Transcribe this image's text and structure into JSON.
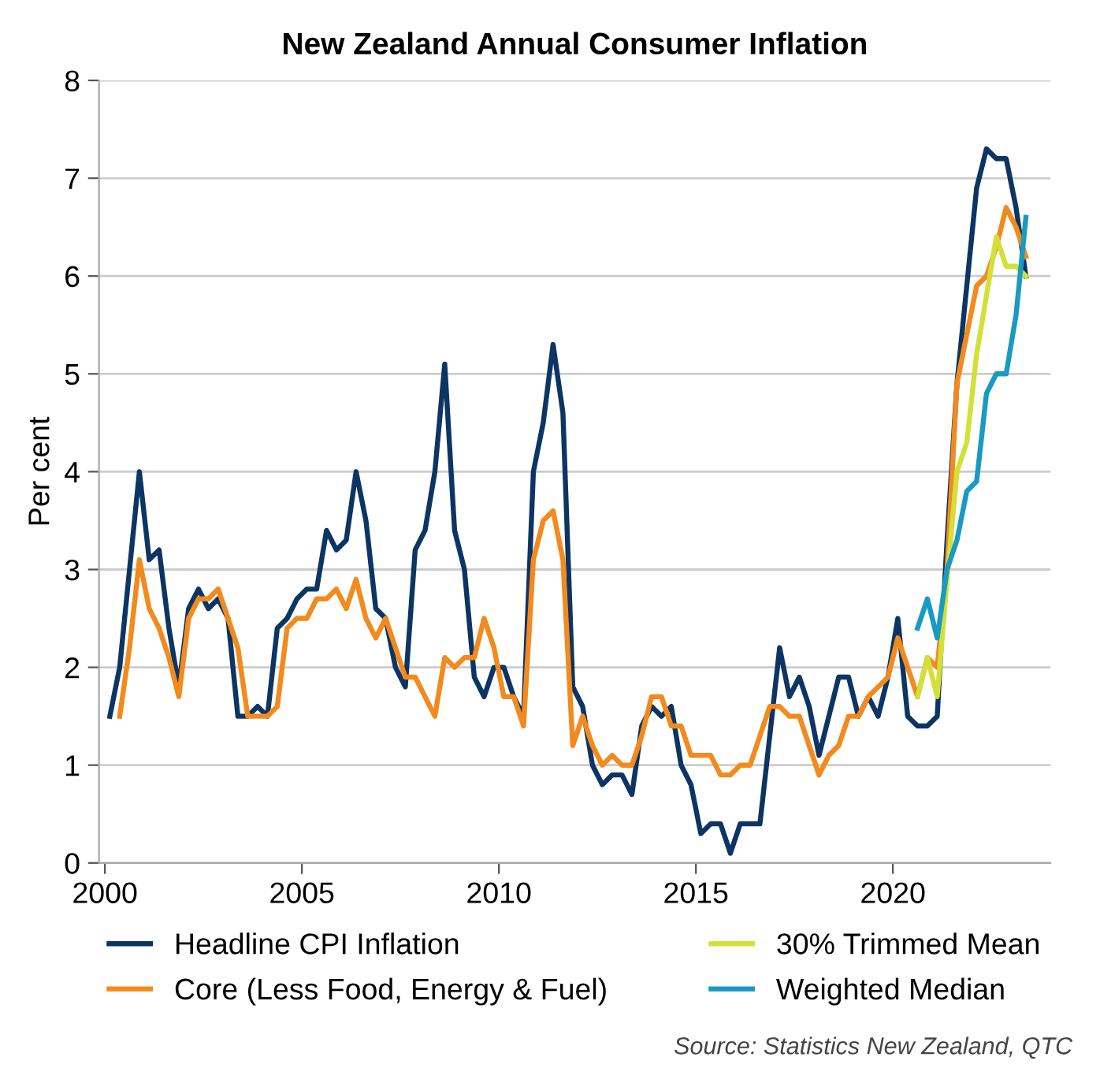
{
  "chart_data": {
    "type": "line",
    "title": "New Zealand Annual Consumer Inflation",
    "ylabel": "Per cent",
    "x": [
      2000.125,
      2000.375,
      2000.625,
      2000.875,
      2001.125,
      2001.375,
      2001.625,
      2001.875,
      2002.125,
      2002.375,
      2002.625,
      2002.875,
      2003.125,
      2003.375,
      2003.625,
      2003.875,
      2004.125,
      2004.375,
      2004.625,
      2004.875,
      2005.125,
      2005.375,
      2005.625,
      2005.875,
      2006.125,
      2006.375,
      2006.625,
      2006.875,
      2007.125,
      2007.375,
      2007.625,
      2007.875,
      2008.125,
      2008.375,
      2008.625,
      2008.875,
      2009.125,
      2009.375,
      2009.625,
      2009.875,
      2010.125,
      2010.375,
      2010.625,
      2010.875,
      2011.125,
      2011.375,
      2011.625,
      2011.875,
      2012.125,
      2012.375,
      2012.625,
      2012.875,
      2013.125,
      2013.375,
      2013.625,
      2013.875,
      2014.125,
      2014.375,
      2014.625,
      2014.875,
      2015.125,
      2015.375,
      2015.625,
      2015.875,
      2016.125,
      2016.375,
      2016.625,
      2016.875,
      2017.125,
      2017.375,
      2017.625,
      2017.875,
      2018.125,
      2018.375,
      2018.625,
      2018.875,
      2019.125,
      2019.375,
      2019.625,
      2019.875,
      2020.125,
      2020.375,
      2020.625,
      2020.875,
      2021.125,
      2021.375,
      2021.625,
      2021.875,
      2022.125,
      2022.375,
      2022.625,
      2022.875,
      2023.125,
      2023.375
    ],
    "series": [
      {
        "name": "Headline CPI Inflation",
        "color": "#0d3563",
        "values": [
          1.5,
          2.0,
          3.0,
          4.0,
          3.1,
          3.2,
          2.4,
          1.8,
          2.6,
          2.8,
          2.6,
          2.7,
          2.5,
          1.5,
          1.5,
          1.6,
          1.5,
          2.4,
          2.5,
          2.7,
          2.8,
          2.8,
          3.4,
          3.2,
          3.3,
          4.0,
          3.5,
          2.6,
          2.5,
          2.0,
          1.8,
          3.2,
          3.4,
          4.0,
          5.1,
          3.4,
          3.0,
          1.9,
          1.7,
          2.0,
          2.0,
          1.7,
          1.5,
          4.0,
          4.5,
          5.3,
          4.6,
          1.8,
          1.6,
          1.0,
          0.8,
          0.9,
          0.9,
          0.7,
          1.4,
          1.6,
          1.5,
          1.6,
          1.0,
          0.8,
          0.3,
          0.4,
          0.4,
          0.1,
          0.4,
          0.4,
          0.4,
          1.3,
          2.2,
          1.7,
          1.9,
          1.6,
          1.1,
          1.5,
          1.9,
          1.9,
          1.5,
          1.7,
          1.5,
          1.9,
          2.5,
          1.5,
          1.4,
          1.4,
          1.5,
          3.3,
          4.9,
          5.9,
          6.9,
          7.3,
          7.2,
          7.2,
          6.7,
          6.0
        ]
      },
      {
        "name": "Core (Less Food, Energy & Fuel)",
        "color": "#f28a1e",
        "values": [
          null,
          1.5,
          2.2,
          3.1,
          2.6,
          2.4,
          2.1,
          1.7,
          2.5,
          2.7,
          2.7,
          2.8,
          2.5,
          2.2,
          1.5,
          1.5,
          1.5,
          1.6,
          2.4,
          2.5,
          2.5,
          2.7,
          2.7,
          2.8,
          2.6,
          2.9,
          2.5,
          2.3,
          2.5,
          2.2,
          1.9,
          1.9,
          1.7,
          1.5,
          2.1,
          2.0,
          2.1,
          2.1,
          2.5,
          2.2,
          1.7,
          1.7,
          1.4,
          3.1,
          3.5,
          3.6,
          3.1,
          1.2,
          1.5,
          1.2,
          1.0,
          1.1,
          1.0,
          1.0,
          1.3,
          1.7,
          1.7,
          1.4,
          1.4,
          1.1,
          1.1,
          1.1,
          0.9,
          0.9,
          1.0,
          1.0,
          1.3,
          1.6,
          1.6,
          1.5,
          1.5,
          1.2,
          0.9,
          1.1,
          1.2,
          1.5,
          1.5,
          1.7,
          1.8,
          1.9,
          2.3,
          2.0,
          1.7,
          2.1,
          2.0,
          3.0,
          4.9,
          5.4,
          5.9,
          6.0,
          6.3,
          6.7,
          6.5,
          6.2
        ]
      },
      {
        "name": "30% Trimmed Mean",
        "color": "#d4e03a",
        "values": [
          null,
          null,
          null,
          null,
          null,
          null,
          null,
          null,
          null,
          null,
          null,
          null,
          null,
          null,
          null,
          null,
          null,
          null,
          null,
          null,
          null,
          null,
          null,
          null,
          null,
          null,
          null,
          null,
          null,
          null,
          null,
          null,
          null,
          null,
          null,
          null,
          null,
          null,
          null,
          null,
          null,
          null,
          null,
          null,
          null,
          null,
          null,
          null,
          null,
          null,
          null,
          null,
          null,
          null,
          null,
          null,
          null,
          null,
          null,
          null,
          null,
          null,
          null,
          null,
          null,
          null,
          null,
          null,
          null,
          null,
          null,
          null,
          null,
          null,
          null,
          null,
          null,
          null,
          null,
          null,
          null,
          null,
          1.7,
          2.1,
          1.7,
          2.9,
          4.0,
          4.3,
          5.2,
          5.8,
          6.4,
          6.1,
          6.1,
          6.0
        ]
      },
      {
        "name": "Weighted Median",
        "color": "#1a9ac0",
        "values": [
          null,
          null,
          null,
          null,
          null,
          null,
          null,
          null,
          null,
          null,
          null,
          null,
          null,
          null,
          null,
          null,
          null,
          null,
          null,
          null,
          null,
          null,
          null,
          null,
          null,
          null,
          null,
          null,
          null,
          null,
          null,
          null,
          null,
          null,
          null,
          null,
          null,
          null,
          null,
          null,
          null,
          null,
          null,
          null,
          null,
          null,
          null,
          null,
          null,
          null,
          null,
          null,
          null,
          null,
          null,
          null,
          null,
          null,
          null,
          null,
          null,
          null,
          null,
          null,
          null,
          null,
          null,
          null,
          null,
          null,
          null,
          null,
          null,
          null,
          null,
          null,
          null,
          null,
          null,
          null,
          null,
          null,
          2.4,
          2.7,
          2.3,
          3.0,
          3.3,
          3.8,
          3.9,
          4.8,
          5.0,
          5.0,
          5.6,
          6.6
        ]
      }
    ],
    "xlim": [
      1999.85,
      2024
    ],
    "xticks": [
      2000,
      2005,
      2010,
      2015,
      2020
    ],
    "ylim": [
      0,
      8
    ],
    "yticks": [
      0,
      1,
      2,
      3,
      4,
      5,
      6,
      7,
      8
    ],
    "grid": "y",
    "legend": "bottom",
    "marker": "none",
    "line_style": "solid",
    "annotations": [
      "Source: Statistics New Zealand, QTC"
    ]
  }
}
